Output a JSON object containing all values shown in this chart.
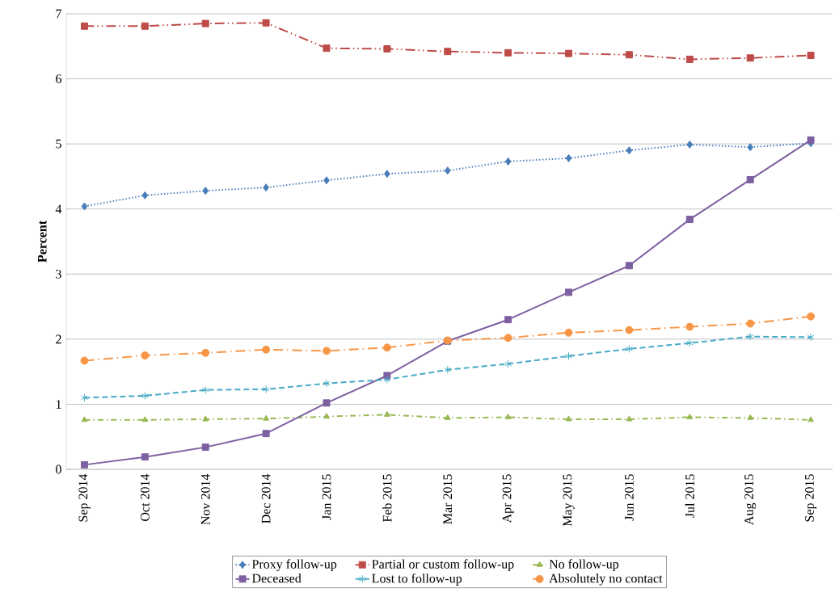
{
  "chart_data": {
    "type": "line",
    "ylabel": "Percent",
    "categories": [
      "Sep 2014",
      "Oct 2014",
      "Nov 2014",
      "Dec 2014",
      "Jan 2015",
      "Feb 2015",
      "Mar 2015",
      "Apr 2015",
      "May 2015",
      "Jun 2015",
      "Jul 2015",
      "Aug 2015",
      "Sep 2015"
    ],
    "ylim": [
      0,
      7
    ],
    "yticks": [
      0,
      1,
      2,
      3,
      4,
      5,
      6,
      7
    ],
    "grid": "y",
    "legend": "bottom",
    "series": [
      {
        "name": "Proxy follow-up",
        "color": "#4a7ebb",
        "marker": "diamond",
        "line_style": "dotted",
        "values": [
          4.04,
          4.21,
          4.28,
          4.33,
          4.44,
          4.54,
          4.59,
          4.73,
          4.78,
          4.9,
          4.99,
          4.95,
          5.01
        ]
      },
      {
        "name": "Partial or custom follow-up",
        "color": "#be4b48",
        "marker": "square",
        "line_style": "dashdotdot",
        "values": [
          6.81,
          6.81,
          6.85,
          6.86,
          6.47,
          6.46,
          6.42,
          6.4,
          6.39,
          6.37,
          6.3,
          6.32,
          6.36
        ]
      },
      {
        "name": "No follow-up",
        "color": "#98b954",
        "marker": "triangle",
        "line_style": "dashdot",
        "values": [
          0.76,
          0.76,
          0.77,
          0.78,
          0.81,
          0.84,
          0.79,
          0.8,
          0.77,
          0.77,
          0.8,
          0.79,
          0.76
        ]
      },
      {
        "name": "Deceased",
        "color": "#7d60a0",
        "marker": "square",
        "line_style": "solid",
        "values": [
          0.07,
          0.19,
          0.34,
          0.55,
          1.02,
          1.44,
          1.97,
          2.3,
          2.72,
          3.13,
          3.84,
          4.45,
          5.06
        ]
      },
      {
        "name": "Lost to follow-up",
        "color": "#46aac5",
        "marker": "cross",
        "line_style": "dashed",
        "values": [
          1.1,
          1.13,
          1.22,
          1.23,
          1.32,
          1.38,
          1.53,
          1.62,
          1.74,
          1.85,
          1.94,
          2.04,
          2.03
        ]
      },
      {
        "name": "Absolutely no contact",
        "color": "#f79646",
        "marker": "circle",
        "line_style": "longdashdot",
        "values": [
          1.67,
          1.75,
          1.79,
          1.84,
          1.82,
          1.87,
          1.98,
          2.02,
          2.1,
          2.14,
          2.19,
          2.24,
          2.35
        ]
      }
    ]
  }
}
